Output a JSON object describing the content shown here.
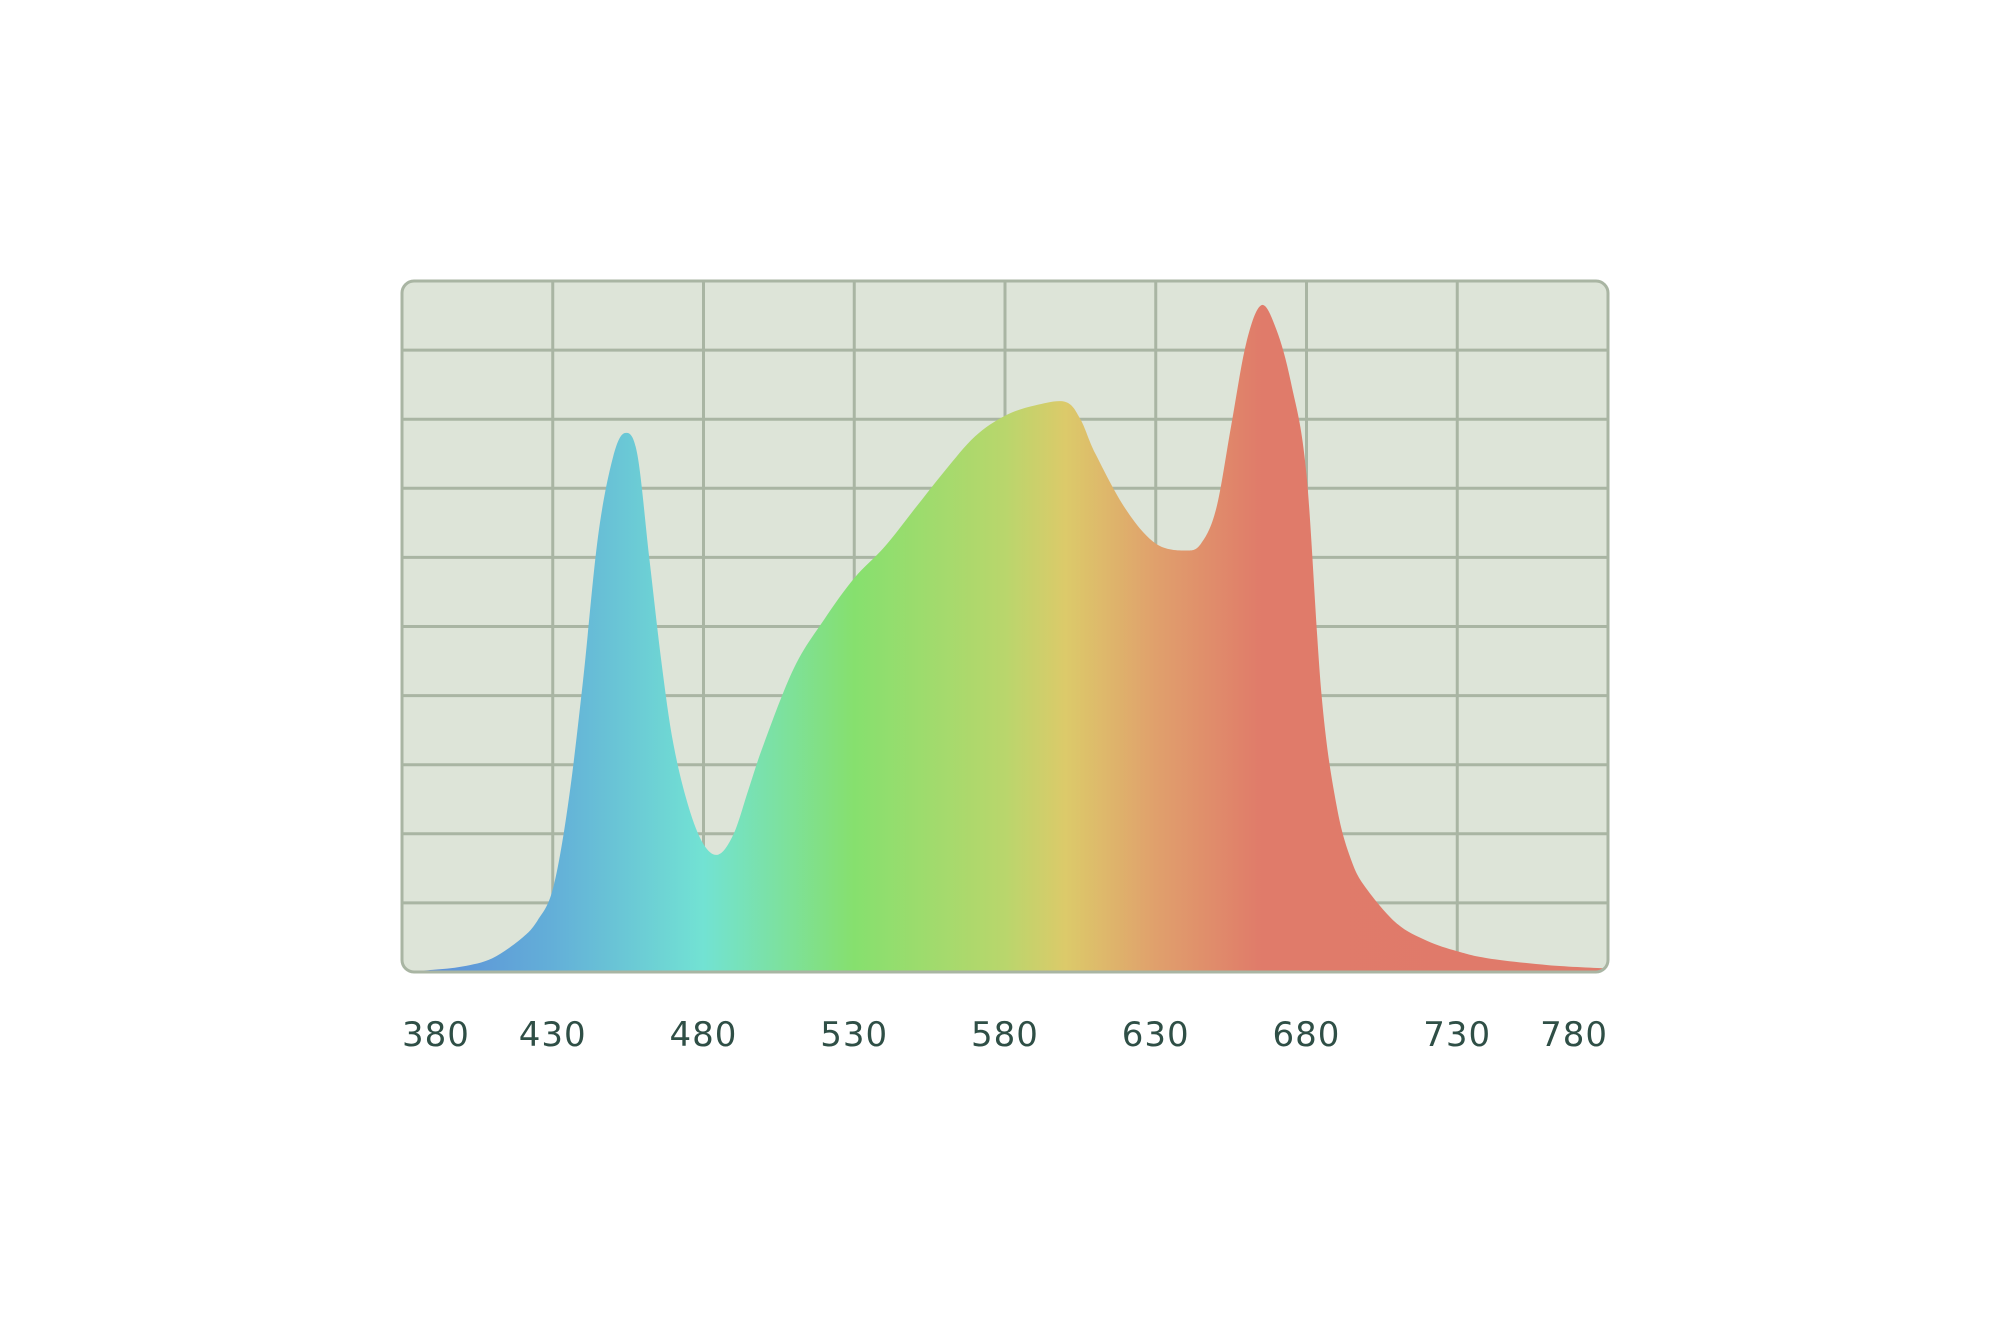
{
  "chart_data": {
    "type": "area",
    "title": "",
    "xlabel": "",
    "ylabel": "",
    "xlim": [
      380,
      780
    ],
    "ylim": [
      0,
      100
    ],
    "x_ticks": [
      380,
      430,
      480,
      530,
      580,
      630,
      680,
      730,
      780
    ],
    "x_tick_labels": [
      "380",
      "430",
      "480",
      "530",
      "580",
      "630",
      "680",
      "730",
      "780"
    ],
    "y_gridlines": 10,
    "grid": true,
    "legend": "none",
    "colors": {
      "plot_background": "#dde4d8",
      "grid": "#a9b5a3",
      "tick_text": "#2f4f46",
      "gradient": [
        {
          "x": 380,
          "color": "#5b88d9"
        },
        {
          "x": 430,
          "color": "#63afd8"
        },
        {
          "x": 480,
          "color": "#72e2d3"
        },
        {
          "x": 530,
          "color": "#86e06e"
        },
        {
          "x": 580,
          "color": "#b9d66c"
        },
        {
          "x": 600,
          "color": "#dcca6a"
        },
        {
          "x": 630,
          "color": "#e0a06c"
        },
        {
          "x": 665,
          "color": "#e07b6a"
        },
        {
          "x": 780,
          "color": "#e07a6a"
        }
      ]
    },
    "series": [
      {
        "x": [
          380,
          390,
          400,
          410,
          420,
          425,
          430,
          435,
          440,
          445,
          450,
          454,
          458,
          462,
          466,
          470,
          475,
          480,
          485,
          490,
          495,
          500,
          510,
          520,
          530,
          540,
          550,
          560,
          570,
          580,
          590,
          600,
          605,
          610,
          620,
          630,
          640,
          645,
          650,
          655,
          660,
          665,
          670,
          675,
          680,
          685,
          690,
          695,
          700,
          710,
          720,
          730,
          740,
          760,
          780
        ],
        "values": [
          0,
          0.3,
          0.8,
          2,
          5,
          7.5,
          12,
          24,
          42,
          63,
          74.5,
          78,
          75,
          60,
          45,
          33,
          24,
          18.5,
          17,
          20,
          26.5,
          33,
          44,
          51,
          57,
          61.5,
          67,
          72.5,
          77.5,
          80.5,
          82,
          82.5,
          80,
          75,
          67,
          62,
          61,
          62,
          67,
          79,
          91,
          96.5,
          93,
          85,
          72,
          40,
          24,
          16,
          12,
          7,
          4.5,
          3,
          2,
          1,
          0.5
        ]
      }
    ]
  }
}
